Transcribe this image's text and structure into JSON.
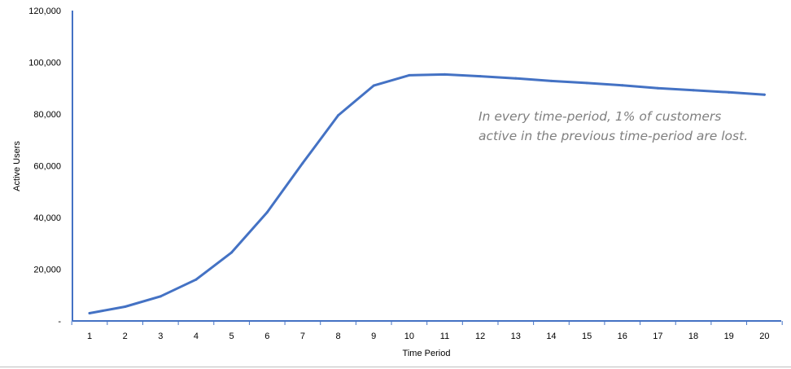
{
  "chart_data": {
    "type": "line",
    "title": "",
    "xlabel": "Time Period",
    "ylabel": "Active Users",
    "x": [
      1,
      2,
      3,
      4,
      5,
      6,
      7,
      8,
      9,
      10,
      11,
      12,
      13,
      14,
      15,
      16,
      17,
      18,
      19,
      20
    ],
    "y_ticks": [
      "-",
      "20,000",
      "40,000",
      "60,000",
      "80,000",
      "100,000",
      "120,000"
    ],
    "ylim": [
      0,
      120000
    ],
    "grid": false,
    "legend": "none",
    "series": [
      {
        "values": [
          3000,
          5500,
          9500,
          16000,
          26500,
          42000,
          61000,
          79500,
          91000,
          95000,
          95300,
          94600,
          93800,
          92800,
          92000,
          91100,
          90000,
          89200,
          88400,
          87500
        ],
        "color": "#4472c4"
      }
    ],
    "annotation": {
      "lines": [
        "In every time-period, 1% of customers",
        "active in the previous time-period are lost."
      ],
      "color": "#7f7f7f"
    },
    "axis_color": "#4472c4"
  }
}
